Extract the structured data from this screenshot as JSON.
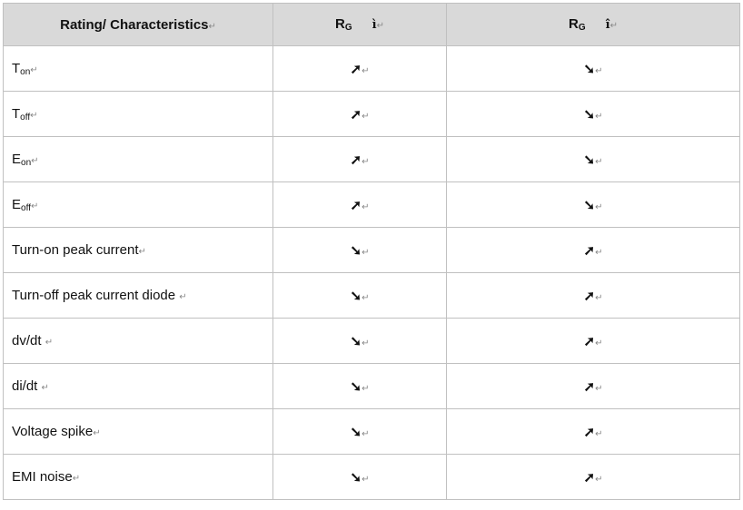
{
  "header": {
    "col1": "Rating/ Characteristics",
    "col2": {
      "symbol": "R",
      "sub": "G",
      "glyph": "ì"
    },
    "col3": {
      "symbol": "R",
      "sub": "G",
      "glyph": "î"
    }
  },
  "arrows": {
    "up": "➚",
    "down": "➘"
  },
  "rows": [
    {
      "label": "T",
      "sub": "on",
      "col2": "up",
      "col3": "down"
    },
    {
      "label": "T",
      "sub": "off",
      "col2": "up",
      "col3": "down"
    },
    {
      "label": "E",
      "sub": "on",
      "col2": "up",
      "col3": "down"
    },
    {
      "label": "E",
      "sub": "off",
      "col2": "up",
      "col3": "down"
    },
    {
      "label": "Turn-on peak current",
      "sub": "",
      "col2": "down",
      "col3": "up"
    },
    {
      "label": "Turn-off peak current diode ",
      "sub": "",
      "col2": "down",
      "col3": "up"
    },
    {
      "label": "dv/dt ",
      "sub": "",
      "col2": "down",
      "col3": "up"
    },
    {
      "label": "di/dt ",
      "sub": "",
      "col2": "down",
      "col3": "up"
    },
    {
      "label": "Voltage spike",
      "sub": "",
      "col2": "down",
      "col3": "up"
    },
    {
      "label": "EMI noise",
      "sub": "",
      "col2": "down",
      "col3": "up"
    }
  ],
  "paragraph_mark": "↵"
}
